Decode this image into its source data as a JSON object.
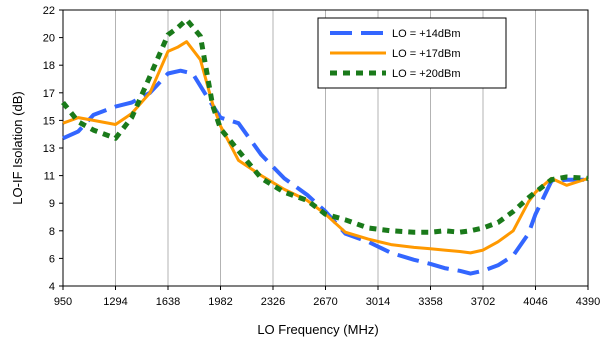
{
  "chart_data": {
    "type": "line",
    "xlabel": "LO Frequency (MHz)",
    "ylabel": "LO-IF Isolation (dB)",
    "x_ticks": [
      "950",
      "1294",
      "1638",
      "1982",
      "2326",
      "2670",
      "3014",
      "3358",
      "3702",
      "4046",
      "4390"
    ],
    "y_ticks": [
      "4",
      "6",
      "8",
      "9",
      "11",
      "13",
      "15",
      "17",
      "18",
      "20",
      "22"
    ],
    "grid": "vertical",
    "legend_position": "top-right",
    "series": [
      {
        "name": "LO = +14dBm",
        "color": "#3366ff",
        "dash": "dashed",
        "x": [
          950,
          1050,
          1150,
          1294,
          1400,
          1520,
          1638,
          1720,
          1800,
          1900,
          1982,
          2100,
          2250,
          2400,
          2550,
          2670,
          2800,
          2950,
          3100,
          3250,
          3358,
          3450,
          3550,
          3620,
          3702,
          3800,
          3900,
          4000,
          4046,
          4150,
          4250,
          4390
        ],
        "y": [
          13.7,
          14.2,
          15.4,
          16.0,
          16.3,
          17.0,
          17.7,
          17.8,
          17.7,
          16.6,
          15.2,
          14.8,
          12.5,
          10.8,
          9.6,
          8.7,
          7.8,
          7.2,
          6.4,
          5.9,
          5.6,
          5.3,
          5.1,
          4.9,
          5.1,
          5.5,
          6.2,
          7.8,
          8.6,
          10.6,
          10.7,
          10.7
        ]
      },
      {
        "name": "LO = +17dBm",
        "color": "#ff9900",
        "dash": "solid",
        "x": [
          950,
          1050,
          1150,
          1294,
          1400,
          1520,
          1638,
          1700,
          1760,
          1850,
          1930,
          1982,
          2100,
          2250,
          2400,
          2550,
          2670,
          2800,
          2950,
          3100,
          3250,
          3358,
          3450,
          3550,
          3620,
          3702,
          3800,
          3900,
          4000,
          4046,
          4150,
          4250,
          4390
        ],
        "y": [
          14.8,
          15.2,
          15.0,
          14.7,
          15.5,
          17.0,
          19.0,
          19.3,
          19.7,
          18.4,
          16.2,
          14.6,
          12.1,
          11.0,
          10.0,
          9.2,
          8.6,
          7.9,
          7.4,
          7.0,
          6.8,
          6.7,
          6.6,
          6.5,
          6.4,
          6.6,
          7.2,
          8.0,
          9.1,
          9.8,
          10.8,
          10.3,
          10.8
        ]
      },
      {
        "name": "LO = +20dBm",
        "color": "#1a7a1a",
        "dash": "dotted",
        "x": [
          950,
          1050,
          1150,
          1294,
          1400,
          1520,
          1638,
          1700,
          1760,
          1850,
          1930,
          1982,
          2100,
          2250,
          2400,
          2550,
          2670,
          2800,
          2950,
          3100,
          3250,
          3358,
          3450,
          3550,
          3620,
          3702,
          3800,
          3900,
          4000,
          4046,
          4150,
          4250,
          4390
        ],
        "y": [
          16.3,
          14.9,
          14.3,
          13.7,
          15.2,
          17.6,
          20.2,
          20.7,
          21.3,
          20.1,
          16.1,
          14.4,
          12.8,
          10.8,
          9.8,
          9.2,
          8.6,
          8.4,
          8.1,
          8.0,
          7.9,
          7.9,
          8.0,
          7.9,
          8.0,
          8.1,
          8.3,
          8.7,
          9.4,
          9.8,
          10.7,
          10.9,
          10.8
        ]
      }
    ]
  }
}
